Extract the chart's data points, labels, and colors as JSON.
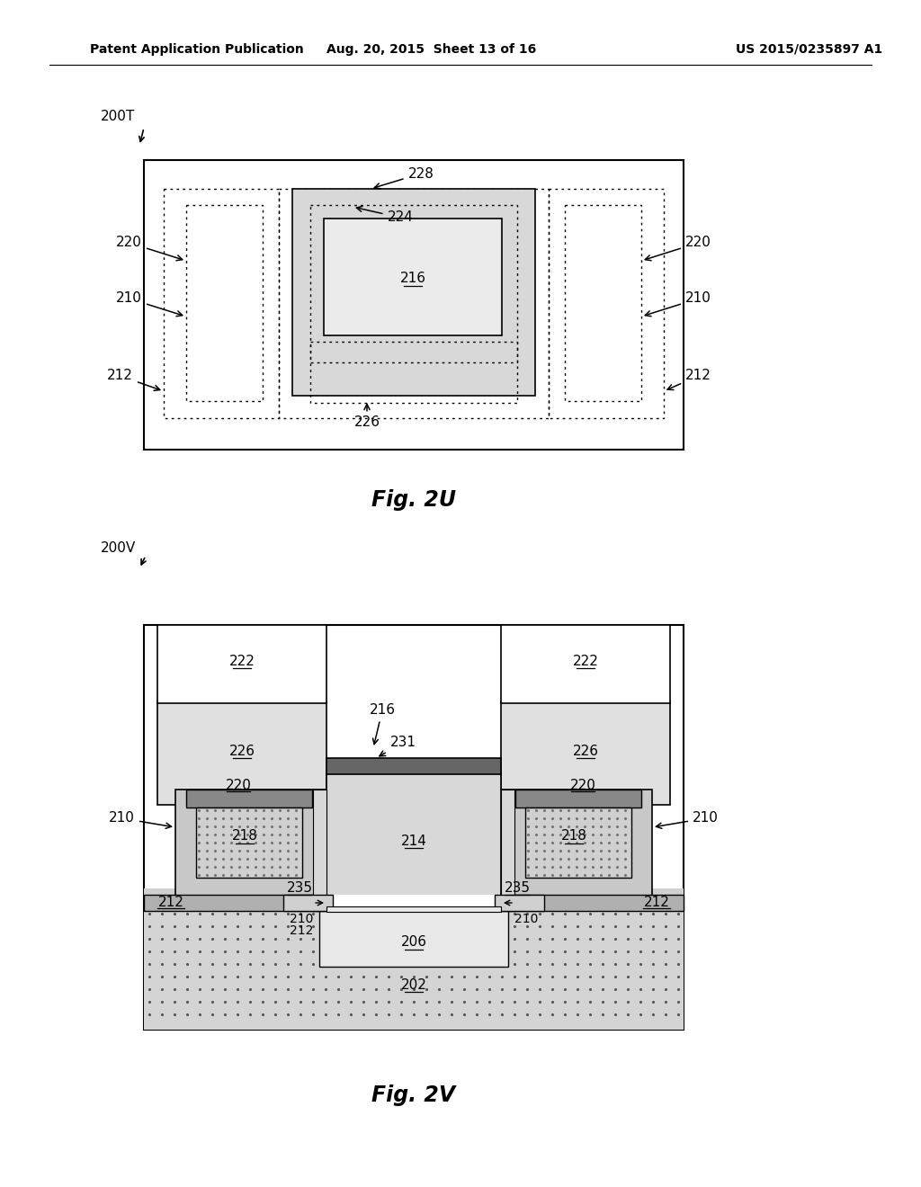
{
  "header_left": "Patent Application Publication",
  "header_mid": "Aug. 20, 2015  Sheet 13 of 16",
  "header_right": "US 2015/0235897 A1",
  "bg_color": "#ffffff",
  "c_white": "#ffffff",
  "c_light_gray": "#e0e0e0",
  "c_medium_gray": "#c0c0c0",
  "c_dark_gray": "#909090",
  "c_darker_gray": "#606060",
  "c_black": "#000000"
}
